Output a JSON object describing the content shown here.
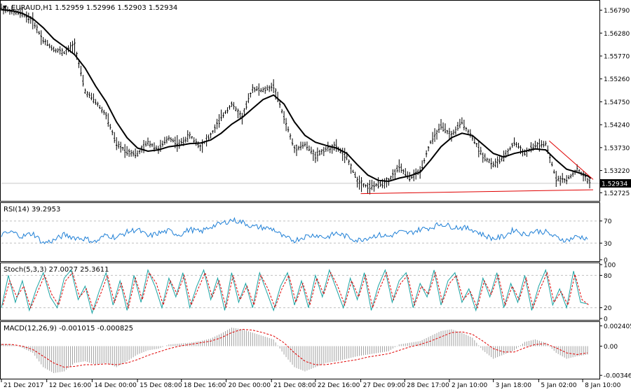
{
  "window": {
    "symbol_title": "EURAUD,H1",
    "ohlc": "1.52959 1.52996 1.52903 1.52934"
  },
  "colors": {
    "price": "#000000",
    "ma": "#000000",
    "trend": "#e00000",
    "rsi": "#1e7fd6",
    "stoch_main": "#1aa3a3",
    "stoch_signal": "#e00000",
    "macd_hist": "#a0a0a0",
    "macd_signal": "#e00000",
    "grid": "#c0c0c0"
  },
  "chart_data": [
    {
      "type": "line",
      "panel": "price",
      "title": "EURAUD,H1",
      "ohlc_label": "1.52959 1.52996 1.52903 1.52934",
      "ylim": [
        1.5259,
        1.5697
      ],
      "y_ticks": [
        "1.56790",
        "1.56280",
        "1.55770",
        "1.55260",
        "1.54750",
        "1.54240",
        "1.53730",
        "1.53220",
        "1.52725"
      ],
      "y_tick_values": [
        1.5679,
        1.5628,
        1.5577,
        1.5526,
        1.5475,
        1.5424,
        1.5373,
        1.5322,
        1.52725
      ],
      "current_price_label": "1.52934",
      "current_price": 1.52934,
      "price_series_x": [
        0,
        15,
        30,
        45,
        60,
        75,
        90,
        105,
        120,
        135,
        150,
        165,
        180,
        195,
        210,
        225,
        240,
        255,
        270,
        285,
        300,
        315,
        330,
        345,
        360,
        375,
        390,
        405,
        420,
        435,
        450,
        465,
        480,
        495,
        510,
        525,
        540,
        555,
        570,
        585,
        600,
        615,
        630,
        645,
        660,
        675,
        690,
        705,
        720,
        735,
        750,
        765,
        780,
        795,
        810,
        825,
        840,
        845
      ],
      "price_series_y": [
        1.5684,
        1.5676,
        1.5671,
        1.5655,
        1.5612,
        1.5592,
        1.5585,
        1.5602,
        1.5498,
        1.5475,
        1.5445,
        1.538,
        1.5365,
        1.5358,
        1.5385,
        1.537,
        1.5395,
        1.538,
        1.54,
        1.5375,
        1.54,
        1.544,
        1.547,
        1.544,
        1.5505,
        1.55,
        1.551,
        1.544,
        1.537,
        1.538,
        1.5355,
        1.537,
        1.5375,
        1.535,
        1.53,
        1.5285,
        1.529,
        1.53,
        1.533,
        1.5305,
        1.532,
        1.5385,
        1.542,
        1.54,
        1.543,
        1.5395,
        1.5355,
        1.5335,
        1.535,
        1.5385,
        1.536,
        1.5378,
        1.538,
        1.5305,
        1.53,
        1.5325,
        1.53,
        1.5293
      ],
      "ma_series_y": [
        1.568,
        1.5678,
        1.5672,
        1.566,
        1.564,
        1.5615,
        1.5598,
        1.558,
        1.555,
        1.551,
        1.5475,
        1.543,
        1.5395,
        1.5372,
        1.5365,
        1.5368,
        1.5375,
        1.5378,
        1.5382,
        1.5383,
        1.539,
        1.5405,
        1.5425,
        1.544,
        1.546,
        1.548,
        1.549,
        1.547,
        1.543,
        1.54,
        1.5385,
        1.5378,
        1.5372,
        1.536,
        1.5335,
        1.5312,
        1.53,
        1.5298,
        1.5305,
        1.531,
        1.5318,
        1.5345,
        1.5375,
        1.5395,
        1.5405,
        1.54,
        1.538,
        1.536,
        1.5352,
        1.536,
        1.5365,
        1.537,
        1.5368,
        1.5345,
        1.5325,
        1.5318,
        1.531,
        1.5305
      ],
      "trendlines": [
        {
          "from": [
            515,
            1.52705
          ],
          "to": [
            848,
            1.5279
          ]
        },
        {
          "from": [
            785,
            1.5388
          ],
          "to": [
            848,
            1.5302
          ]
        }
      ]
    },
    {
      "type": "line",
      "panel": "rsi",
      "title": "RSI(14) 39.2953",
      "ylim": [
        0,
        100
      ],
      "y_ticks": [
        "70",
        "30",
        "0"
      ],
      "y_tick_values": [
        70,
        30,
        0
      ],
      "levels": [
        70,
        30
      ],
      "x": [
        0,
        15,
        30,
        45,
        60,
        75,
        90,
        105,
        120,
        135,
        150,
        165,
        180,
        195,
        210,
        225,
        240,
        255,
        270,
        285,
        300,
        315,
        330,
        345,
        360,
        375,
        390,
        405,
        420,
        435,
        450,
        465,
        480,
        495,
        510,
        525,
        540,
        555,
        570,
        585,
        600,
        615,
        630,
        645,
        660,
        675,
        690,
        705,
        720,
        735,
        750,
        765,
        780,
        795,
        810,
        825,
        840
      ],
      "values": [
        45,
        50,
        42,
        48,
        30,
        35,
        45,
        40,
        38,
        32,
        45,
        40,
        50,
        55,
        42,
        48,
        52,
        45,
        55,
        50,
        60,
        65,
        72,
        68,
        60,
        58,
        55,
        40,
        35,
        42,
        45,
        40,
        48,
        42,
        35,
        40,
        45,
        42,
        50,
        48,
        55,
        58,
        65,
        60,
        58,
        55,
        45,
        38,
        42,
        55,
        45,
        52,
        50,
        40,
        35,
        42,
        39
      ]
    },
    {
      "type": "line",
      "panel": "stochastic",
      "title": "Stoch(5,3,3) 27.0027 25.3611",
      "ylim": [
        0,
        100
      ],
      "y_ticks": [
        "100",
        "80",
        "20",
        "0"
      ],
      "y_tick_values": [
        100,
        80,
        20,
        0
      ],
      "levels": [
        80,
        20
      ],
      "x": [
        0,
        10,
        20,
        30,
        40,
        50,
        60,
        70,
        80,
        90,
        100,
        110,
        120,
        130,
        140,
        150,
        160,
        170,
        180,
        190,
        200,
        210,
        220,
        230,
        240,
        250,
        260,
        270,
        280,
        290,
        300,
        310,
        320,
        330,
        340,
        350,
        360,
        370,
        380,
        390,
        400,
        410,
        420,
        430,
        440,
        450,
        460,
        470,
        480,
        490,
        500,
        510,
        520,
        530,
        540,
        550,
        560,
        570,
        580,
        590,
        600,
        610,
        620,
        630,
        640,
        650,
        660,
        670,
        680,
        690,
        700,
        710,
        720,
        730,
        740,
        750,
        760,
        770,
        780,
        790,
        800,
        810,
        820,
        830,
        840
      ],
      "main": [
        20,
        80,
        30,
        70,
        15,
        55,
        85,
        40,
        20,
        75,
        90,
        35,
        60,
        10,
        50,
        85,
        25,
        70,
        15,
        80,
        30,
        90,
        60,
        20,
        75,
        40,
        85,
        20,
        60,
        90,
        35,
        75,
        15,
        85,
        30,
        65,
        20,
        85,
        50,
        15,
        60,
        85,
        25,
        70,
        20,
        80,
        40,
        90,
        55,
        20,
        75,
        35,
        85,
        15,
        60,
        90,
        30,
        70,
        85,
        20,
        65,
        40,
        90,
        25,
        70,
        85,
        30,
        55,
        15,
        75,
        40,
        85,
        20,
        65,
        30,
        80,
        15,
        60,
        90,
        25,
        55,
        20,
        88,
        30,
        27
      ],
      "signal": [
        25,
        70,
        40,
        60,
        20,
        50,
        80,
        45,
        25,
        70,
        85,
        40,
        55,
        15,
        45,
        80,
        30,
        65,
        20,
        75,
        35,
        85,
        65,
        25,
        70,
        45,
        80,
        25,
        55,
        85,
        40,
        70,
        20,
        80,
        35,
        60,
        25,
        80,
        55,
        20,
        55,
        80,
        30,
        65,
        25,
        75,
        45,
        85,
        60,
        25,
        70,
        40,
        80,
        20,
        55,
        85,
        35,
        65,
        80,
        25,
        60,
        45,
        85,
        30,
        65,
        80,
        35,
        50,
        20,
        70,
        45,
        80,
        25,
        60,
        35,
        75,
        20,
        55,
        85,
        30,
        50,
        25,
        82,
        35,
        25
      ]
    },
    {
      "type": "bar",
      "panel": "macd",
      "title": "MACD(12,26,9) -0.001015 -0.000825",
      "ylim": [
        -0.0037,
        0.0027
      ],
      "y_ticks": [
        "0.002405",
        "0.00",
        "-0.003466"
      ],
      "y_tick_values": [
        0.002405,
        0.0,
        -0.003466
      ],
      "x": [
        0,
        15,
        30,
        45,
        60,
        75,
        90,
        105,
        120,
        135,
        150,
        165,
        180,
        195,
        210,
        225,
        240,
        255,
        270,
        285,
        300,
        315,
        330,
        345,
        360,
        375,
        390,
        405,
        420,
        435,
        450,
        465,
        480,
        495,
        510,
        525,
        540,
        555,
        570,
        585,
        600,
        615,
        630,
        645,
        660,
        675,
        690,
        705,
        720,
        735,
        750,
        765,
        780,
        795,
        810,
        825,
        840
      ],
      "histogram": [
        0.0003,
        0.0002,
        -0.0002,
        -0.0008,
        -0.0025,
        -0.0032,
        -0.003,
        -0.002,
        -0.0018,
        -0.0022,
        -0.002,
        -0.0025,
        -0.0018,
        -0.001,
        -0.0005,
        -0.0003,
        0.0002,
        0.0003,
        0.0004,
        0.0006,
        0.0009,
        0.0015,
        0.0022,
        0.002,
        0.0016,
        0.0012,
        0.0008,
        -0.001,
        -0.0025,
        -0.003,
        -0.0025,
        -0.002,
        -0.0018,
        -0.0015,
        -0.0012,
        -0.001,
        -0.0008,
        -0.0006,
        0.0002,
        0.0004,
        0.0006,
        0.0012,
        0.0018,
        0.002,
        0.0016,
        0.001,
        -0.0005,
        -0.0015,
        -0.001,
        -0.0005,
        0.0005,
        0.0008,
        0.0004,
        -0.0008,
        -0.0015,
        -0.0012,
        -0.001
      ],
      "signal": [
        0.0002,
        0.0002,
        0.0,
        -0.0004,
        -0.0012,
        -0.002,
        -0.0025,
        -0.0024,
        -0.0022,
        -0.0022,
        -0.0021,
        -0.0022,
        -0.002,
        -0.0016,
        -0.0011,
        -0.0007,
        -0.0003,
        0.0,
        0.0002,
        0.0004,
        0.0006,
        0.001,
        0.0016,
        0.002,
        0.0019,
        0.0016,
        0.0012,
        0.0004,
        -0.0008,
        -0.0018,
        -0.0022,
        -0.0022,
        -0.002,
        -0.0018,
        -0.0016,
        -0.0013,
        -0.0011,
        -0.0009,
        -0.0005,
        -0.0001,
        0.0002,
        0.0006,
        0.0011,
        0.0016,
        0.0017,
        0.0014,
        0.0006,
        -0.0003,
        -0.0007,
        -0.0007,
        -0.0002,
        0.0002,
        0.0003,
        -0.0002,
        -0.0008,
        -0.001,
        -0.0008
      ]
    }
  ],
  "x_axis": {
    "labels": [
      "21 Dec 2017",
      "12 Dec 16:00",
      "14 Dec 00:00",
      "15 Dec 08:00",
      "18 Dec 16:00",
      "20 Dec 00:00",
      "21 Dec 08:00",
      "22 Dec 16:00",
      "27 Dec 09:00",
      "28 Dec 17:00",
      "2 Jan 10:00",
      "3 Jan 18:00",
      "5 Jan 02:00",
      "8 Jan 10:00"
    ],
    "label_positions": [
      0,
      65,
      130,
      195,
      258,
      322,
      387,
      450,
      515,
      578,
      642,
      705,
      770,
      833
    ]
  }
}
